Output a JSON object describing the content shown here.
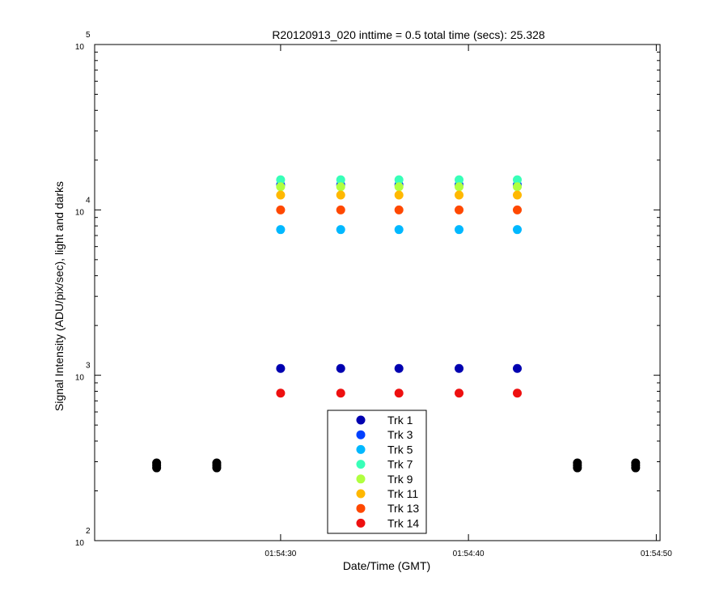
{
  "chart_data": {
    "type": "scatter",
    "title": "R20120913_020 inttime = 0.5 total time (secs): 25.328",
    "xlabel": "Date/Time (GMT)",
    "ylabel": "Signal Intensity (ADU/pix/sec), light and darks",
    "y_scale": "log",
    "ylim": [
      100,
      100000
    ],
    "y_tick_bases": [
      "10",
      "10",
      "10",
      "10"
    ],
    "y_tick_exponents": [
      "2",
      "3",
      "4",
      "5"
    ],
    "y_tick_values": [
      100,
      1000,
      10000,
      100000
    ],
    "xlim": [
      "01:54:20.1",
      "01:54:50.2"
    ],
    "x_tick_labels": [
      "01:54:30",
      "01:54:40",
      "01:54:50"
    ],
    "x_tick_values": [
      "01:54:30",
      "01:54:40",
      "01:54:50"
    ],
    "legend_position": "bottom-center",
    "series": [
      {
        "name": "Trk 1",
        "color": "#0000b0",
        "x": [
          "01:54:30",
          "01:54:33.2",
          "01:54:36.3",
          "01:54:39.5",
          "01:54:42.6"
        ],
        "values": [
          1100,
          1100,
          1100,
          1100,
          1100
        ]
      },
      {
        "name": "Trk 3",
        "color": "#0040ff",
        "x": [
          "01:54:30",
          "01:54:33.2",
          "01:54:36.3",
          "01:54:39.5",
          "01:54:42.6"
        ],
        "values": [
          14200,
          14200,
          14200,
          14200,
          14200
        ]
      },
      {
        "name": "Trk 5",
        "color": "#00b8ff",
        "x": [
          "01:54:30",
          "01:54:33.2",
          "01:54:36.3",
          "01:54:39.5",
          "01:54:42.6"
        ],
        "values": [
          7600,
          7600,
          7600,
          7600,
          7600
        ]
      },
      {
        "name": "Trk 7",
        "color": "#38ffb8",
        "x": [
          "01:54:30",
          "01:54:33.2",
          "01:54:36.3",
          "01:54:39.5",
          "01:54:42.6"
        ],
        "values": [
          15200,
          15200,
          15200,
          15200,
          15200
        ]
      },
      {
        "name": "Trk 9",
        "color": "#b0ff40",
        "x": [
          "01:54:30",
          "01:54:33.2",
          "01:54:36.3",
          "01:54:39.5",
          "01:54:42.6"
        ],
        "values": [
          13800,
          13800,
          13800,
          13800,
          13800
        ]
      },
      {
        "name": "Trk 11",
        "color": "#ffb800",
        "x": [
          "01:54:30",
          "01:54:33.2",
          "01:54:36.3",
          "01:54:39.5",
          "01:54:42.6"
        ],
        "values": [
          12300,
          12300,
          12300,
          12300,
          12300
        ]
      },
      {
        "name": "Trk 13",
        "color": "#ff4800",
        "x": [
          "01:54:30",
          "01:54:33.2",
          "01:54:36.3",
          "01:54:39.5",
          "01:54:42.6"
        ],
        "values": [
          10000,
          10000,
          10000,
          10000,
          10000
        ]
      },
      {
        "name": "Trk 14",
        "color": "#ee1010",
        "x": [
          "01:54:30",
          "01:54:33.2",
          "01:54:36.3",
          "01:54:39.5",
          "01:54:42.6"
        ],
        "values": [
          780,
          780,
          780,
          780,
          780
        ]
      }
    ],
    "darks": {
      "color": "#000000",
      "x": [
        "01:54:23.4",
        "01:54:26.6",
        "01:54:45.8",
        "01:54:48.9"
      ],
      "values": [
        285,
        285,
        285,
        285
      ]
    }
  }
}
